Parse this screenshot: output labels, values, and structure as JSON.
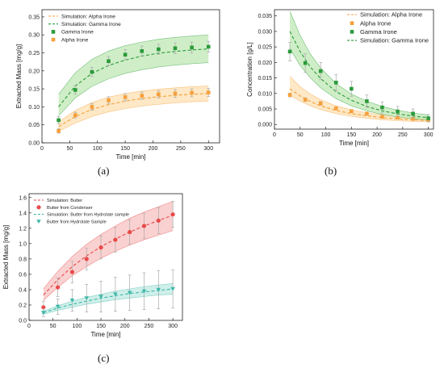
{
  "colors": {
    "orange": "#f5a03c",
    "orange_band": "#fde0b3",
    "green": "#2a9a3a",
    "green_band": "#bfe8b4",
    "red": "#e84a4a",
    "red_band": "#f8c2c2",
    "teal": "#3cb8a8",
    "teal_band": "#bfe9e3",
    "axis": "#222222"
  },
  "chart_data": [
    {
      "id": "a",
      "type": "scatter",
      "panel_label": "(a)",
      "xlabel": "Time [min]",
      "ylabel": "Extracted Mass [mg/g]",
      "xlim": [
        0,
        320
      ],
      "ylim": [
        0,
        0.37
      ],
      "xticks": [
        0,
        50,
        100,
        150,
        200,
        250,
        300
      ],
      "yticks": [
        0.0,
        0.05,
        0.1,
        0.15,
        0.2,
        0.25,
        0.3,
        0.35
      ],
      "ytick_labels": [
        "0.00",
        "0.05",
        "0.10",
        "0.15",
        "0.20",
        "0.25",
        "0.30",
        "0.35"
      ],
      "legend_position": "top-left",
      "series": [
        {
          "name": "Simulation: Alpha Irone",
          "kind": "line",
          "color": "orange",
          "x": [
            30,
            60,
            90,
            120,
            150,
            180,
            210,
            240,
            270,
            300
          ],
          "values": [
            0.045,
            0.073,
            0.093,
            0.106,
            0.116,
            0.123,
            0.128,
            0.132,
            0.135,
            0.137
          ],
          "band_low": [
            0.032,
            0.055,
            0.073,
            0.086,
            0.095,
            0.102,
            0.107,
            0.111,
            0.114,
            0.116
          ],
          "band_high": [
            0.058,
            0.09,
            0.112,
            0.127,
            0.137,
            0.144,
            0.149,
            0.153,
            0.156,
            0.158
          ]
        },
        {
          "name": "Simulation: Gamma Irone",
          "kind": "line",
          "color": "green",
          "x": [
            30,
            60,
            90,
            120,
            150,
            180,
            210,
            240,
            270,
            300
          ],
          "values": [
            0.1,
            0.158,
            0.193,
            0.215,
            0.23,
            0.241,
            0.249,
            0.254,
            0.258,
            0.261
          ],
          "band_low": [
            0.075,
            0.125,
            0.157,
            0.178,
            0.193,
            0.203,
            0.211,
            0.216,
            0.22,
            0.223
          ],
          "band_high": [
            0.135,
            0.195,
            0.232,
            0.255,
            0.27,
            0.28,
            0.288,
            0.293,
            0.297,
            0.3
          ]
        },
        {
          "name": "Gamma Irone",
          "kind": "points",
          "marker": "square",
          "color": "green",
          "x": [
            30,
            60,
            90,
            120,
            150,
            180,
            210,
            240,
            270,
            300
          ],
          "values": [
            0.063,
            0.147,
            0.197,
            0.227,
            0.245,
            0.255,
            0.26,
            0.263,
            0.265,
            0.267
          ],
          "err": [
            0.01,
            0.012,
            0.013,
            0.013,
            0.014,
            0.014,
            0.014,
            0.015,
            0.015,
            0.015
          ]
        },
        {
          "name": "Alpha Irone",
          "kind": "points",
          "marker": "square",
          "color": "orange",
          "x": [
            30,
            60,
            90,
            120,
            150,
            180,
            210,
            240,
            270,
            300
          ],
          "values": [
            0.033,
            0.077,
            0.1,
            0.118,
            0.127,
            0.131,
            0.135,
            0.137,
            0.139,
            0.14
          ],
          "err": [
            0.006,
            0.008,
            0.009,
            0.01,
            0.01,
            0.01,
            0.01,
            0.011,
            0.011,
            0.011
          ]
        }
      ]
    },
    {
      "id": "b",
      "type": "scatter",
      "panel_label": "(b)",
      "xlabel": "Time [min]",
      "ylabel": "Concentration [g/L]",
      "xlim": [
        0,
        310
      ],
      "ylim": [
        -0.0015,
        0.037
      ],
      "xticks": [
        0,
        50,
        100,
        150,
        200,
        250,
        300
      ],
      "yticks": [
        0.0,
        0.005,
        0.01,
        0.015,
        0.02,
        0.025,
        0.03,
        0.035
      ],
      "ytick_labels": [
        "0.000",
        "0.005",
        "0.010",
        "0.015",
        "0.020",
        "0.025",
        "0.030",
        "0.035"
      ],
      "legend_position": "top-right",
      "series": [
        {
          "name": "Simulation: Alpha Irone",
          "kind": "line",
          "color": "orange",
          "x": [
            30,
            50,
            70,
            90,
            120,
            150,
            180,
            210,
            240,
            270,
            300
          ],
          "values": [
            0.0115,
            0.0092,
            0.0074,
            0.006,
            0.0045,
            0.0035,
            0.0028,
            0.0022,
            0.0018,
            0.0015,
            0.0013
          ],
          "band_low": [
            0.0095,
            0.0075,
            0.006,
            0.0048,
            0.0035,
            0.0026,
            0.002,
            0.0015,
            0.0012,
            0.001,
            0.0009
          ],
          "band_high": [
            0.0155,
            0.0122,
            0.0098,
            0.008,
            0.006,
            0.0047,
            0.0038,
            0.0031,
            0.0026,
            0.0022,
            0.0019
          ]
        },
        {
          "name": "Alpha Irone",
          "kind": "points",
          "marker": "square",
          "color": "orange",
          "x": [
            30,
            60,
            90,
            120,
            150,
            180,
            210,
            240,
            270,
            300
          ],
          "values": [
            0.0095,
            0.008,
            0.0068,
            0.0052,
            0.0043,
            0.0035,
            0.0025,
            0.0022,
            0.0018,
            0.0015
          ],
          "err": [
            0.0006,
            0.0006,
            0.0006,
            0.0005,
            0.0005,
            0.0005,
            0.0004,
            0.0004,
            0.0004,
            0.0004
          ]
        },
        {
          "name": "Gamma Irone",
          "kind": "points",
          "marker": "square",
          "color": "green",
          "x": [
            30,
            60,
            90,
            120,
            150,
            180,
            210,
            240,
            270,
            300
          ],
          "values": [
            0.0235,
            0.0198,
            0.0172,
            0.0135,
            0.0115,
            0.0075,
            0.0055,
            0.0042,
            0.0035,
            0.002
          ],
          "err": [
            0.003,
            0.003,
            0.0028,
            0.0026,
            0.0024,
            0.002,
            0.0018,
            0.0016,
            0.0015,
            0.0012
          ]
        },
        {
          "name": "Simulation: Gamma Irone",
          "kind": "line",
          "color": "green",
          "x": [
            30,
            50,
            70,
            90,
            120,
            150,
            180,
            210,
            240,
            270,
            300
          ],
          "values": [
            0.03,
            0.0235,
            0.0185,
            0.0148,
            0.0106,
            0.0078,
            0.0058,
            0.0044,
            0.0034,
            0.0027,
            0.0022
          ],
          "band_low": [
            0.0245,
            0.019,
            0.015,
            0.0118,
            0.0083,
            0.006,
            0.0044,
            0.0032,
            0.0024,
            0.0018,
            0.0014
          ],
          "band_high": [
            0.0365,
            0.0287,
            0.0227,
            0.0182,
            0.0132,
            0.0098,
            0.0075,
            0.0058,
            0.0046,
            0.0037,
            0.0031
          ]
        }
      ]
    },
    {
      "id": "c",
      "type": "scatter",
      "panel_label": "(c)",
      "xlabel": "Time [min]",
      "ylabel": "Extracted Mass [mg/g]",
      "xlim": [
        0,
        320
      ],
      "ylim": [
        0,
        1.65
      ],
      "xticks": [
        0,
        50,
        100,
        150,
        200,
        250,
        300
      ],
      "yticks": [
        0.0,
        0.2,
        0.4,
        0.6,
        0.8,
        1.0,
        1.2,
        1.4,
        1.6
      ],
      "ytick_labels": [
        "0.0",
        "0.2",
        "0.4",
        "0.6",
        "0.8",
        "1.0",
        "1.2",
        "1.4",
        "1.6"
      ],
      "legend_position": "top-left",
      "series": [
        {
          "name": "Simulation: Butter",
          "kind": "line",
          "color": "red",
          "x": [
            30,
            60,
            90,
            120,
            150,
            180,
            210,
            240,
            270,
            300
          ],
          "values": [
            0.33,
            0.53,
            0.7,
            0.84,
            0.96,
            1.06,
            1.15,
            1.23,
            1.3,
            1.37
          ],
          "band_low": [
            0.26,
            0.43,
            0.58,
            0.7,
            0.81,
            0.9,
            0.98,
            1.05,
            1.11,
            1.17
          ],
          "band_high": [
            0.41,
            0.64,
            0.83,
            0.99,
            1.12,
            1.23,
            1.33,
            1.41,
            1.48,
            1.55
          ]
        },
        {
          "name": "Butter from Condenser",
          "kind": "points",
          "marker": "circle",
          "color": "red",
          "x": [
            30,
            60,
            90,
            120,
            150,
            180,
            210,
            240,
            270,
            300
          ],
          "values": [
            0.17,
            0.43,
            0.63,
            0.8,
            0.95,
            1.05,
            1.15,
            1.23,
            1.3,
            1.38
          ],
          "err": [
            0.08,
            0.12,
            0.14,
            0.14,
            0.15,
            0.16,
            0.16,
            0.16,
            0.17,
            0.17
          ]
        },
        {
          "name": "Simulation: Butter from Hydrolate sample",
          "kind": "line",
          "color": "teal",
          "x": [
            30,
            60,
            90,
            120,
            150,
            180,
            210,
            240,
            270,
            300
          ],
          "values": [
            0.1,
            0.16,
            0.21,
            0.25,
            0.29,
            0.32,
            0.35,
            0.37,
            0.39,
            0.41
          ],
          "band_low": [
            0.08,
            0.13,
            0.17,
            0.21,
            0.24,
            0.27,
            0.29,
            0.31,
            0.33,
            0.34
          ],
          "band_high": [
            0.12,
            0.19,
            0.25,
            0.3,
            0.34,
            0.38,
            0.41,
            0.44,
            0.46,
            0.48
          ]
        },
        {
          "name": "Butter from Hydrolate Sample",
          "kind": "points",
          "marker": "triangle",
          "color": "teal",
          "x": [
            30,
            60,
            90,
            120,
            150,
            180,
            210,
            240,
            270,
            300
          ],
          "values": [
            0.1,
            0.18,
            0.26,
            0.29,
            0.31,
            0.34,
            0.36,
            0.38,
            0.4,
            0.41
          ],
          "err": [
            0.05,
            0.1,
            0.14,
            0.18,
            0.2,
            0.22,
            0.23,
            0.24,
            0.25,
            0.25
          ]
        }
      ]
    }
  ]
}
